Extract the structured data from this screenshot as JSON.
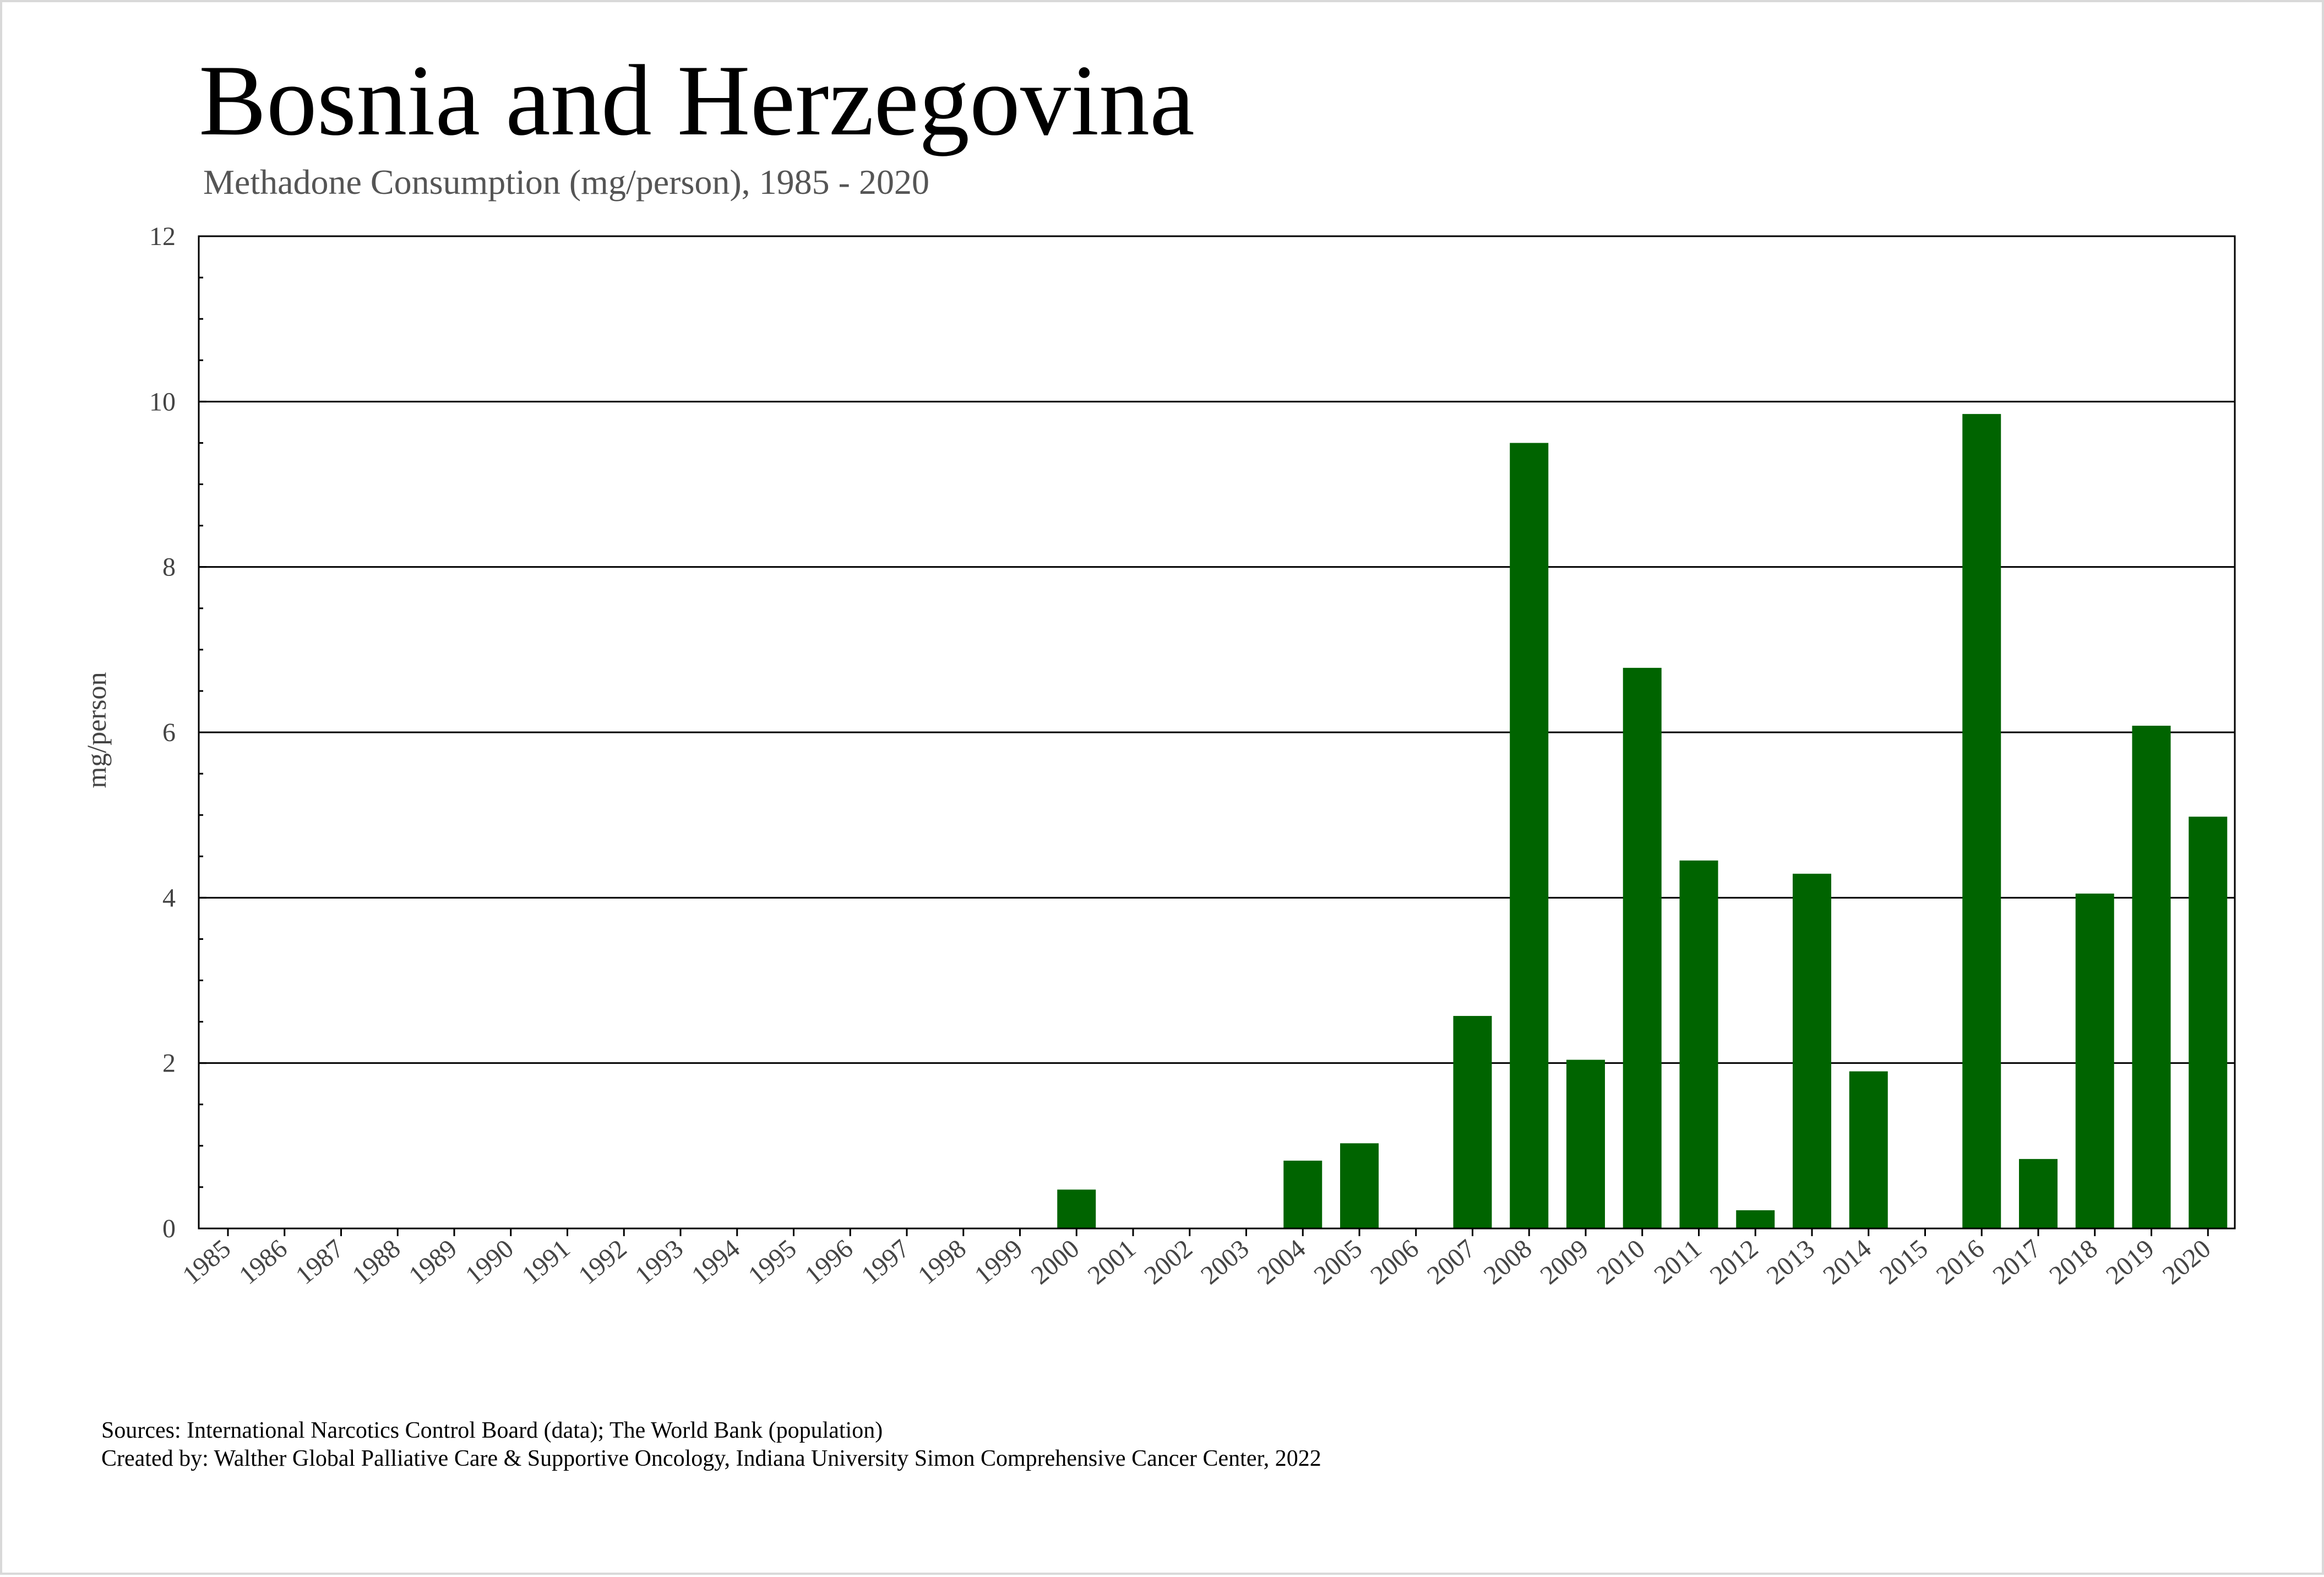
{
  "title": "Bosnia and Herzegovina",
  "subtitle": "Methadone Consumption (mg/person), 1985 - 2020",
  "sources": [
    "Sources: International Narcotics Control Board (data); The World Bank (population)",
    "Created by: Walther Global Palliative Care & Supportive Oncology, Indiana University Simon Comprehensive Cancer Center, 2022"
  ],
  "colors": {
    "bar": "#006400",
    "grid": "#000000",
    "axis": "#000000"
  },
  "chart_data": {
    "type": "bar",
    "categories": [
      "1985",
      "1986",
      "1987",
      "1988",
      "1989",
      "1990",
      "1991",
      "1992",
      "1993",
      "1994",
      "1995",
      "1996",
      "1997",
      "1998",
      "1999",
      "2000",
      "2001",
      "2002",
      "2003",
      "2004",
      "2005",
      "2006",
      "2007",
      "2008",
      "2009",
      "2010",
      "2011",
      "2012",
      "2013",
      "2014",
      "2015",
      "2016",
      "2017",
      "2018",
      "2019",
      "2020"
    ],
    "values": [
      0,
      0,
      0,
      0,
      0,
      0,
      0,
      0,
      0,
      0,
      0,
      0,
      0,
      0,
      0,
      0.47,
      0,
      0,
      0,
      0.82,
      1.03,
      0,
      2.57,
      9.5,
      2.04,
      6.78,
      4.45,
      0.22,
      4.29,
      1.9,
      0,
      9.85,
      0.84,
      4.05,
      6.08,
      4.98
    ],
    "xlabel": "",
    "ylabel": "mg/person",
    "ylim": [
      0,
      12
    ],
    "yticks": [
      0,
      2,
      4,
      6,
      8,
      10,
      12
    ],
    "grid": true
  }
}
